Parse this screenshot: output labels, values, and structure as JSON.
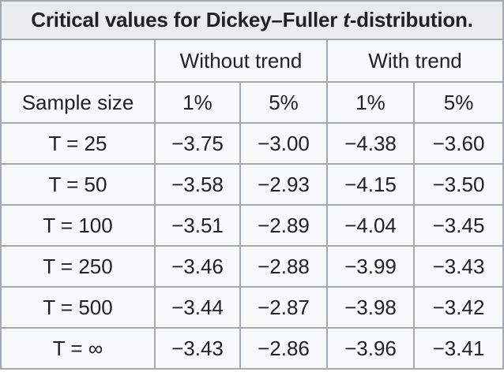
{
  "caption": {
    "prefix": "Critical values for Dickey–Fuller ",
    "italic": "t",
    "suffix": "-distribution."
  },
  "header": {
    "group_blank": "",
    "group_without_trend": "Without trend",
    "group_with_trend": "With trend",
    "sample_size": "Sample size",
    "levels": [
      "1%",
      "5%",
      "1%",
      "5%"
    ]
  },
  "rows": [
    {
      "sample": "T = 25",
      "values": [
        "−3.75",
        "−3.00",
        "−4.38",
        "−3.60"
      ]
    },
    {
      "sample": "T = 50",
      "values": [
        "−3.58",
        "−2.93",
        "−4.15",
        "−3.50"
      ]
    },
    {
      "sample": "T = 100",
      "values": [
        "−3.51",
        "−2.89",
        "−4.04",
        "−3.45"
      ]
    },
    {
      "sample": "T = 250",
      "values": [
        "−3.46",
        "−2.88",
        "−3.99",
        "−3.43"
      ]
    },
    {
      "sample": "T = 500",
      "values": [
        "−3.44",
        "−2.87",
        "−3.98",
        "−3.42"
      ]
    },
    {
      "sample": "T = ∞",
      "values": [
        "−3.43",
        "−2.86",
        "−3.96",
        "−3.41"
      ]
    }
  ],
  "colors": {
    "header_bg": "#eaecf0",
    "cell_bg": "#f8f9fa",
    "border": "#a2a9b1",
    "text": "#202122"
  }
}
